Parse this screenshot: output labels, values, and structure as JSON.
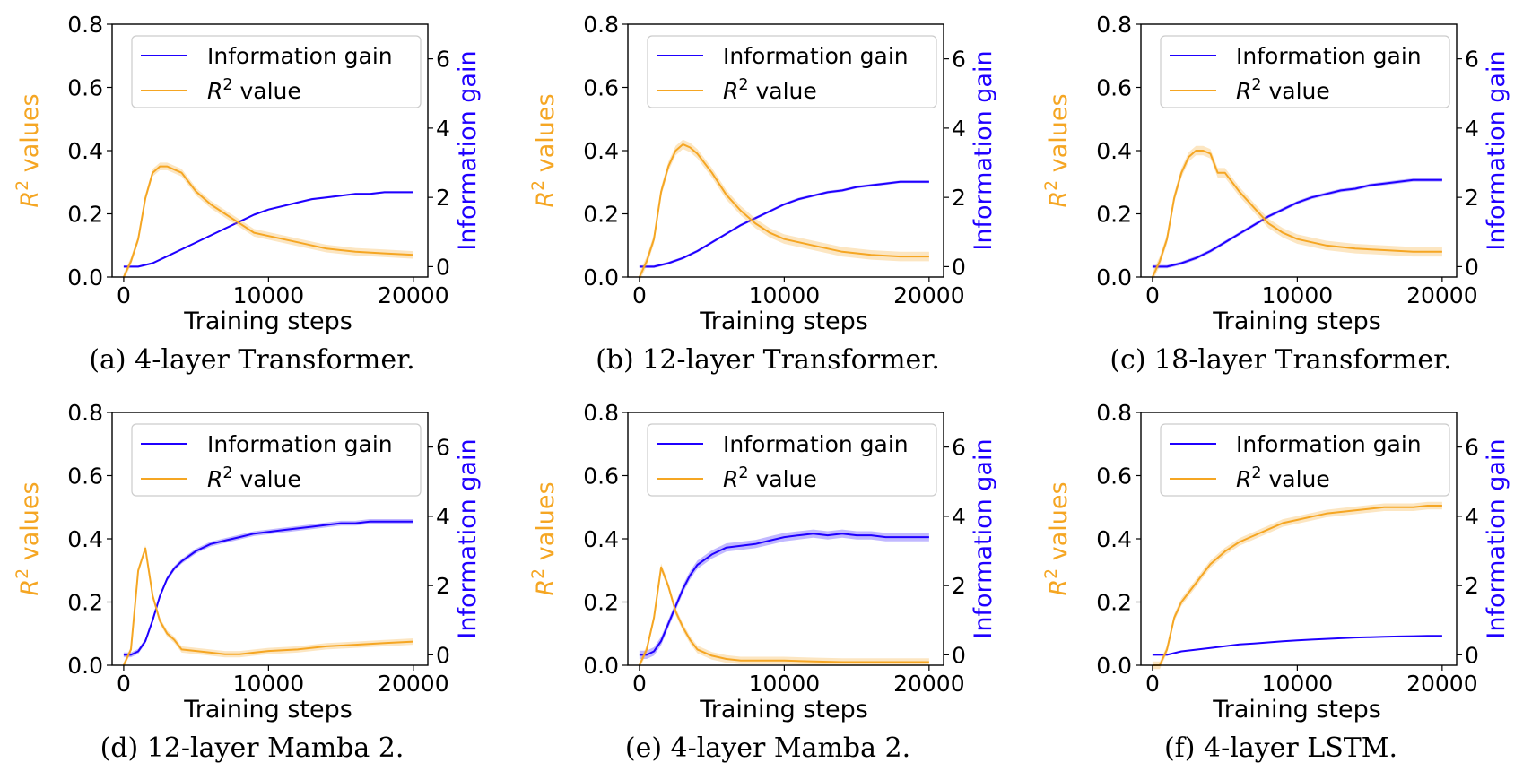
{
  "chart_data": [
    {
      "type": "line",
      "caption": "(a) 4-layer Transformer.",
      "xlabel": "Training steps",
      "ylabel_left": "R² values",
      "ylabel_right": "Information gain",
      "xlim": [
        -800,
        21000
      ],
      "ylim_left": [
        0,
        0.8
      ],
      "ylim_right": [
        -0.3,
        7.0
      ],
      "xticks": [
        0,
        10000,
        20000
      ],
      "yticks_left": [
        0.0,
        0.2,
        0.4,
        0.6,
        0.8
      ],
      "yticks_right": [
        0,
        2,
        4,
        6
      ],
      "legend_position": "top-right",
      "series": [
        {
          "name": "Information gain",
          "axis": "right",
          "color": "#1f00ff",
          "x": [
            0,
            1000,
            2000,
            3000,
            4000,
            5000,
            6000,
            7000,
            8000,
            9000,
            10000,
            11000,
            12000,
            13000,
            14000,
            15000,
            16000,
            17000,
            18000,
            19000,
            20000
          ],
          "values": [
            0.0,
            0.0,
            0.1,
            0.3,
            0.5,
            0.7,
            0.9,
            1.1,
            1.3,
            1.5,
            1.65,
            1.75,
            1.85,
            1.95,
            2.0,
            2.05,
            2.1,
            2.1,
            2.15,
            2.15,
            2.15
          ],
          "spread": 0.03
        },
        {
          "name": "R² value",
          "axis": "left",
          "color": "#f5a623",
          "x": [
            0,
            500,
            1000,
            1500,
            2000,
            2500,
            3000,
            3500,
            4000,
            5000,
            6000,
            7000,
            8000,
            9000,
            10000,
            12000,
            14000,
            16000,
            18000,
            20000
          ],
          "values": [
            0.0,
            0.05,
            0.12,
            0.25,
            0.33,
            0.35,
            0.35,
            0.34,
            0.33,
            0.27,
            0.23,
            0.2,
            0.17,
            0.14,
            0.13,
            0.11,
            0.09,
            0.08,
            0.075,
            0.07
          ],
          "spread": 0.012
        }
      ]
    },
    {
      "type": "line",
      "caption": "(b) 12-layer Transformer.",
      "xlabel": "Training steps",
      "ylabel_left": "R² values",
      "ylabel_right": "Information gain",
      "xlim": [
        -800,
        21000
      ],
      "ylim_left": [
        0,
        0.8
      ],
      "ylim_right": [
        -0.3,
        7.0
      ],
      "xticks": [
        0,
        10000,
        20000
      ],
      "yticks_left": [
        0.0,
        0.2,
        0.4,
        0.6,
        0.8
      ],
      "yticks_right": [
        0,
        2,
        4,
        6
      ],
      "legend_position": "top-right",
      "series": [
        {
          "name": "Information gain",
          "axis": "right",
          "color": "#1f00ff",
          "x": [
            0,
            1000,
            2000,
            3000,
            4000,
            5000,
            6000,
            7000,
            8000,
            9000,
            10000,
            11000,
            12000,
            13000,
            14000,
            15000,
            16000,
            17000,
            18000,
            19000,
            20000
          ],
          "values": [
            0.0,
            0.0,
            0.1,
            0.25,
            0.45,
            0.7,
            0.95,
            1.2,
            1.4,
            1.6,
            1.8,
            1.95,
            2.05,
            2.15,
            2.2,
            2.3,
            2.35,
            2.4,
            2.45,
            2.45,
            2.45
          ],
          "spread": 0.04
        },
        {
          "name": "R² value",
          "axis": "left",
          "color": "#f5a623",
          "x": [
            0,
            500,
            1000,
            1500,
            2000,
            2500,
            3000,
            3500,
            4000,
            5000,
            6000,
            7000,
            8000,
            9000,
            10000,
            12000,
            14000,
            16000,
            18000,
            20000
          ],
          "values": [
            0.0,
            0.05,
            0.12,
            0.27,
            0.35,
            0.4,
            0.42,
            0.41,
            0.39,
            0.33,
            0.26,
            0.21,
            0.17,
            0.14,
            0.12,
            0.1,
            0.08,
            0.07,
            0.065,
            0.065
          ],
          "spread": 0.015
        }
      ]
    },
    {
      "type": "line",
      "caption": "(c) 18-layer Transformer.",
      "xlabel": "Training steps",
      "ylabel_left": "R² values",
      "ylabel_right": "Information gain",
      "xlim": [
        -800,
        21000
      ],
      "ylim_left": [
        0,
        0.8
      ],
      "ylim_right": [
        -0.3,
        7.0
      ],
      "xticks": [
        0,
        10000,
        20000
      ],
      "yticks_left": [
        0.0,
        0.2,
        0.4,
        0.6,
        0.8
      ],
      "yticks_right": [
        0,
        2,
        4,
        6
      ],
      "legend_position": "top-right",
      "series": [
        {
          "name": "Information gain",
          "axis": "right",
          "color": "#1f00ff",
          "x": [
            0,
            1000,
            2000,
            3000,
            4000,
            5000,
            6000,
            7000,
            8000,
            9000,
            10000,
            11000,
            12000,
            13000,
            14000,
            15000,
            16000,
            17000,
            18000,
            19000,
            20000
          ],
          "values": [
            0.0,
            0.0,
            0.1,
            0.25,
            0.45,
            0.7,
            0.95,
            1.2,
            1.45,
            1.65,
            1.85,
            2.0,
            2.1,
            2.2,
            2.25,
            2.35,
            2.4,
            2.45,
            2.5,
            2.5,
            2.5
          ],
          "spread": 0.05
        },
        {
          "name": "R² value",
          "axis": "left",
          "color": "#f5a623",
          "x": [
            0,
            500,
            1000,
            1500,
            2000,
            2500,
            3000,
            3500,
            4000,
            4500,
            5000,
            6000,
            7000,
            8000,
            9000,
            10000,
            12000,
            14000,
            16000,
            18000,
            20000
          ],
          "values": [
            0.0,
            0.05,
            0.12,
            0.25,
            0.33,
            0.38,
            0.4,
            0.4,
            0.39,
            0.33,
            0.33,
            0.27,
            0.22,
            0.17,
            0.14,
            0.12,
            0.1,
            0.09,
            0.085,
            0.08,
            0.08
          ],
          "spread": 0.015
        }
      ]
    },
    {
      "type": "line",
      "caption": "(d) 12-layer Mamba 2.",
      "xlabel": "Training steps",
      "ylabel_left": "R² values",
      "ylabel_right": "Information gain",
      "xlim": [
        -800,
        21000
      ],
      "ylim_left": [
        0,
        0.8
      ],
      "ylim_right": [
        -0.3,
        7.0
      ],
      "xticks": [
        0,
        10000,
        20000
      ],
      "yticks_left": [
        0.0,
        0.2,
        0.4,
        0.6,
        0.8
      ],
      "yticks_right": [
        0,
        2,
        4,
        6
      ],
      "legend_position": "top-right",
      "series": [
        {
          "name": "Information gain",
          "axis": "right",
          "color": "#1f00ff",
          "x": [
            0,
            500,
            1000,
            1500,
            2000,
            2500,
            3000,
            3500,
            4000,
            5000,
            6000,
            7000,
            8000,
            9000,
            10000,
            11000,
            12000,
            13000,
            14000,
            15000,
            16000,
            17000,
            18000,
            19000,
            20000
          ],
          "values": [
            0.0,
            0.0,
            0.1,
            0.4,
            1.0,
            1.7,
            2.2,
            2.5,
            2.7,
            3.0,
            3.2,
            3.3,
            3.4,
            3.5,
            3.55,
            3.6,
            3.65,
            3.7,
            3.75,
            3.8,
            3.8,
            3.85,
            3.85,
            3.85,
            3.85
          ],
          "spread": 0.07
        },
        {
          "name": "R² value",
          "axis": "left",
          "color": "#f5a623",
          "x": [
            0,
            500,
            1000,
            1500,
            2000,
            2500,
            3000,
            3500,
            4000,
            5000,
            6000,
            7000,
            8000,
            9000,
            10000,
            12000,
            14000,
            16000,
            18000,
            20000
          ],
          "values": [
            0.0,
            0.05,
            0.3,
            0.37,
            0.22,
            0.14,
            0.1,
            0.08,
            0.05,
            0.045,
            0.04,
            0.035,
            0.035,
            0.04,
            0.045,
            0.05,
            0.06,
            0.065,
            0.07,
            0.075
          ],
          "spread": 0.01
        }
      ]
    },
    {
      "type": "line",
      "caption": "(e) 4-layer Mamba 2.",
      "xlabel": "Training steps",
      "ylabel_left": "R² values",
      "ylabel_right": "Information gain",
      "xlim": [
        -800,
        21000
      ],
      "ylim_left": [
        0,
        0.8
      ],
      "ylim_right": [
        -0.3,
        7.0
      ],
      "xticks": [
        0,
        10000,
        20000
      ],
      "yticks_left": [
        0.0,
        0.2,
        0.4,
        0.6,
        0.8
      ],
      "yticks_right": [
        0,
        2,
        4,
        6
      ],
      "legend_position": "top-right",
      "series": [
        {
          "name": "Information gain",
          "axis": "right",
          "color": "#1f00ff",
          "x": [
            0,
            500,
            1000,
            1500,
            2000,
            2500,
            3000,
            3500,
            4000,
            5000,
            6000,
            7000,
            8000,
            9000,
            10000,
            11000,
            12000,
            13000,
            14000,
            15000,
            16000,
            17000,
            18000,
            19000,
            20000
          ],
          "values": [
            0.0,
            0.0,
            0.1,
            0.4,
            0.9,
            1.4,
            1.9,
            2.3,
            2.6,
            2.9,
            3.1,
            3.15,
            3.2,
            3.3,
            3.4,
            3.45,
            3.5,
            3.45,
            3.5,
            3.45,
            3.45,
            3.4,
            3.4,
            3.4,
            3.4
          ],
          "spread": 0.12
        },
        {
          "name": "R² value",
          "axis": "left",
          "color": "#f5a623",
          "x": [
            0,
            500,
            1000,
            1500,
            2000,
            2500,
            3000,
            3500,
            4000,
            5000,
            6000,
            7000,
            8000,
            9000,
            10000,
            12000,
            14000,
            16000,
            18000,
            20000
          ],
          "values": [
            0.0,
            0.05,
            0.15,
            0.31,
            0.25,
            0.17,
            0.12,
            0.08,
            0.05,
            0.03,
            0.02,
            0.015,
            0.015,
            0.015,
            0.015,
            0.012,
            0.01,
            0.01,
            0.01,
            0.01
          ],
          "spread": 0.012
        }
      ]
    },
    {
      "type": "line",
      "caption": "(f) 4-layer LSTM.",
      "xlabel": "Training steps",
      "ylabel_left": "R² values",
      "ylabel_right": "Information gain",
      "xlim": [
        -800,
        21000
      ],
      "ylim_left": [
        0,
        0.8
      ],
      "ylim_right": [
        -0.3,
        7.0
      ],
      "xticks": [
        0,
        10000,
        20000
      ],
      "yticks_left": [
        0.0,
        0.2,
        0.4,
        0.6,
        0.8
      ],
      "yticks_right": [
        0,
        2,
        4,
        6
      ],
      "legend_position": "top-right",
      "series": [
        {
          "name": "Information gain",
          "axis": "right",
          "color": "#1f00ff",
          "x": [
            0,
            1000,
            2000,
            3000,
            4000,
            5000,
            6000,
            7000,
            8000,
            9000,
            10000,
            11000,
            12000,
            13000,
            14000,
            15000,
            16000,
            17000,
            18000,
            19000,
            20000
          ],
          "values": [
            0.0,
            0.0,
            0.1,
            0.15,
            0.2,
            0.25,
            0.3,
            0.33,
            0.36,
            0.39,
            0.42,
            0.44,
            0.46,
            0.48,
            0.5,
            0.51,
            0.52,
            0.53,
            0.54,
            0.55,
            0.55
          ],
          "spread": 0.01
        },
        {
          "name": "R² value",
          "axis": "left",
          "color": "#f5a623",
          "x": [
            0,
            500,
            1000,
            1500,
            2000,
            2500,
            3000,
            3500,
            4000,
            5000,
            6000,
            7000,
            8000,
            9000,
            10000,
            11000,
            12000,
            13000,
            14000,
            15000,
            16000,
            17000,
            18000,
            19000,
            20000
          ],
          "values": [
            0.0,
            0.0,
            0.05,
            0.15,
            0.2,
            0.23,
            0.26,
            0.29,
            0.32,
            0.36,
            0.39,
            0.41,
            0.43,
            0.45,
            0.46,
            0.47,
            0.48,
            0.485,
            0.49,
            0.495,
            0.5,
            0.5,
            0.5,
            0.505,
            0.505
          ],
          "spread": 0.012
        }
      ]
    }
  ]
}
